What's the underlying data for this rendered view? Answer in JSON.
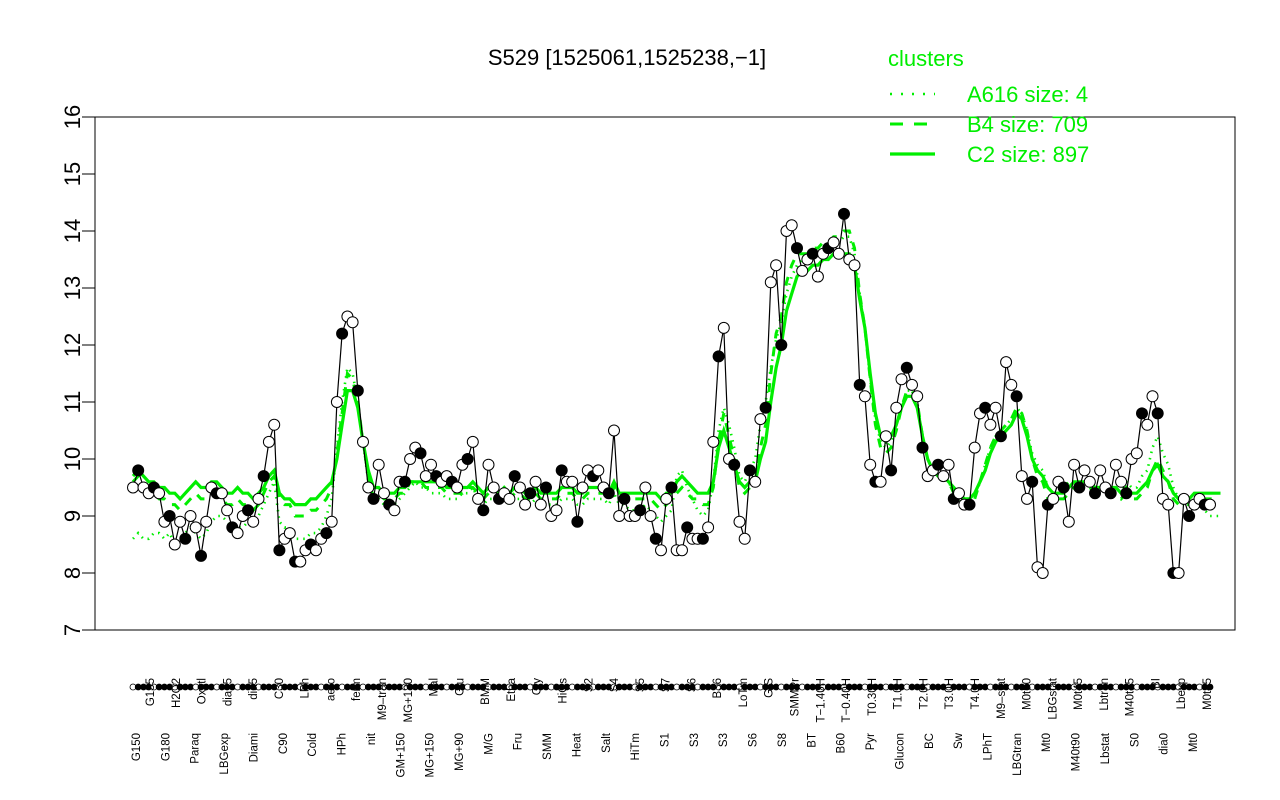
{
  "chart_data": {
    "type": "line",
    "title": "S529 [1525061,1525238,−1]",
    "ylim": [
      7,
      16
    ],
    "yticks": [
      7,
      8,
      9,
      10,
      11,
      12,
      13,
      14,
      15,
      16
    ],
    "grid": false,
    "legend": {
      "title": "clusters",
      "placement": "top-right",
      "color": "#00ee00",
      "entries": [
        {
          "label": "A616 size: 4",
          "style": "dotted"
        },
        {
          "label": "B4 size: 709",
          "style": "dashed"
        },
        {
          "label": "C2 size: 897",
          "style": "solid"
        }
      ]
    },
    "x_tick_labels_upper": [
      "G135",
      "H2O2",
      "Oxctl",
      "dia15",
      "dia5",
      "C30",
      "LPh",
      "aero",
      "ferm",
      "M9–tran",
      "MG+120",
      "Mal",
      "Glu",
      "BMM",
      "Etha",
      "Gly",
      "HiOs",
      "S2",
      "S4",
      "S5",
      "S7",
      "S6",
      "B36",
      "LoTm",
      "G/S",
      "SMMPr",
      "T−1.40H",
      "T−0.40H",
      "T0.30H",
      "T1.0H",
      "T2.0H",
      "T3.0H",
      "T4.0H",
      "M9–stat",
      "M0t90",
      "LBGstat",
      "M0t45",
      "Lbtran",
      "M40t45",
      "BI",
      "Lbexp",
      "M0t45"
    ],
    "x_tick_labels_lower": [
      "G150",
      "G180",
      "Paraq",
      "LBGexp",
      "Diami",
      "C90",
      "Cold",
      "HPh",
      "nit",
      "GM+150",
      "MG+150",
      "MG+90",
      "M/G",
      "Fru",
      "SMM",
      "Heat",
      "Salt",
      "HiTm",
      "S1",
      "S3",
      "S3",
      "S6",
      "S8",
      "BT",
      "B60",
      "Pyr",
      "Glucon",
      "BC",
      "Sw",
      "LPhT",
      "LBGtran",
      "Mt0",
      "M40t90",
      "Lbstat",
      "S0",
      "dia0",
      "Mt0"
    ],
    "series": [
      {
        "style": "black-line-points",
        "values": [
          9.5,
          9.8,
          9.5,
          9.4,
          9.5,
          9.4,
          8.9,
          9.0,
          8.5,
          8.9,
          8.6,
          9.0,
          8.8,
          8.3,
          8.9,
          9.5,
          9.4,
          9.4,
          9.1,
          8.8,
          8.7,
          9.0,
          9.1,
          8.9,
          9.3,
          9.7,
          10.3,
          10.6,
          8.4,
          8.6,
          8.7,
          8.2,
          8.2,
          8.4,
          8.5,
          8.4,
          8.6,
          8.7,
          8.9,
          11.0,
          12.2,
          12.5,
          12.4,
          11.2,
          10.3,
          9.5,
          9.3,
          9.9,
          9.4,
          9.2,
          9.1,
          9.6,
          9.6,
          10.0,
          10.2,
          10.1,
          9.7,
          9.9,
          9.7,
          9.6,
          9.7,
          9.6,
          9.5,
          9.9,
          10.0,
          10.3,
          9.3,
          9.1,
          9.9,
          9.5,
          9.3,
          9.4,
          9.3,
          9.7,
          9.5,
          9.2,
          9.4,
          9.6,
          9.2,
          9.5,
          9.0,
          9.1,
          9.8,
          9.6,
          9.6,
          8.9,
          9.5,
          9.8,
          9.7,
          9.8,
          9.5,
          9.4,
          10.5,
          9.0,
          9.3,
          9.0,
          9.0,
          9.1,
          9.5,
          9.0,
          8.6,
          8.4,
          9.3,
          9.5,
          8.4,
          8.4,
          8.8,
          8.6,
          8.6,
          8.6,
          8.8,
          10.3,
          11.8,
          12.3,
          10.0,
          9.9,
          8.9,
          8.6,
          9.8,
          9.6,
          10.7,
          10.9,
          13.1,
          13.4,
          12.0,
          14.0,
          14.1,
          13.7,
          13.3,
          13.5,
          13.6,
          13.2,
          13.6,
          13.7,
          13.8,
          13.6,
          14.3,
          13.5,
          13.4,
          11.3,
          11.1,
          9.9,
          9.6,
          9.6,
          10.4,
          9.8,
          10.9,
          11.4,
          11.6,
          11.3,
          11.1,
          10.2,
          9.7,
          9.8,
          9.9,
          9.7,
          9.9,
          9.3,
          9.4,
          9.2,
          9.2,
          10.2,
          10.8,
          10.9,
          10.6,
          10.9,
          10.4,
          11.7,
          11.3,
          11.1,
          9.7,
          9.3,
          9.6,
          8.1,
          8.0,
          9.2,
          9.3,
          9.6,
          9.5,
          8.9,
          9.9,
          9.5,
          9.8,
          9.6,
          9.4,
          9.8,
          9.5,
          9.4,
          9.9,
          9.6,
          9.4,
          10.0,
          10.1,
          10.8,
          10.6,
          11.1,
          10.8,
          9.3,
          9.2,
          8.0,
          8.0,
          9.3,
          9.0,
          9.2,
          9.3,
          9.2,
          9.2
        ]
      },
      {
        "name": "C2 size: 897",
        "style": "solid",
        "values": [
          9.7,
          9.8,
          9.7,
          9.6,
          9.6,
          9.5,
          9.5,
          9.4,
          9.4,
          9.3,
          9.4,
          9.5,
          9.6,
          9.5,
          9.5,
          9.6,
          9.6,
          9.5,
          9.4,
          9.4,
          9.5,
          9.4,
          9.4,
          9.3,
          9.4,
          9.5,
          9.7,
          9.8,
          9.4,
          9.3,
          9.3,
          9.2,
          9.2,
          9.2,
          9.3,
          9.3,
          9.4,
          9.5,
          9.6,
          10.0,
          10.6,
          11.2,
          11.2,
          10.9,
          10.3,
          9.8,
          9.5,
          9.5,
          9.4,
          9.4,
          9.4,
          9.5,
          9.5,
          9.6,
          9.6,
          9.6,
          9.6,
          9.6,
          9.6,
          9.6,
          9.5,
          9.5,
          9.5,
          9.5,
          9.5,
          9.6,
          9.5,
          9.4,
          9.5,
          9.5,
          9.4,
          9.5,
          9.4,
          9.5,
          9.5,
          9.4,
          9.4,
          9.5,
          9.4,
          9.4,
          9.4,
          9.4,
          9.5,
          9.5,
          9.5,
          9.4,
          9.4,
          9.5,
          9.5,
          9.5,
          9.5,
          9.4,
          9.6,
          9.4,
          9.4,
          9.4,
          9.4,
          9.4,
          9.4,
          9.4,
          9.4,
          9.3,
          9.4,
          9.4,
          9.6,
          9.7,
          9.6,
          9.5,
          9.4,
          9.4,
          9.4,
          9.6,
          10.2,
          10.5,
          10.2,
          9.9,
          9.6,
          9.5,
          9.6,
          9.6,
          10.0,
          10.3,
          11.0,
          11.6,
          12.0,
          12.6,
          12.9,
          13.2,
          13.3,
          13.3,
          13.4,
          13.4,
          13.5,
          13.5,
          13.6,
          13.6,
          13.6,
          13.6,
          13.4,
          12.8,
          12.3,
          11.5,
          10.8,
          10.4,
          10.3,
          10.4,
          10.6,
          10.9,
          11.1,
          11.1,
          10.9,
          10.4,
          10.0,
          9.8,
          9.7,
          9.7,
          9.6,
          9.5,
          9.4,
          9.3,
          9.3,
          9.4,
          9.6,
          9.8,
          10.1,
          10.3,
          10.4,
          10.5,
          10.6,
          10.8,
          10.7,
          10.4,
          10.0,
          9.8,
          9.7,
          9.5,
          9.4,
          9.4,
          9.4,
          9.5,
          9.6,
          9.6,
          9.6,
          9.6,
          9.5,
          9.5,
          9.5,
          9.5,
          9.5,
          9.4,
          9.5,
          9.4,
          9.4,
          9.5,
          9.6,
          9.8,
          9.9,
          9.7,
          9.6,
          9.4,
          9.3,
          9.3,
          9.3,
          9.4,
          9.4,
          9.4,
          9.4,
          9.4,
          9.4
        ]
      },
      {
        "name": "B4 size: 709",
        "style": "dashed",
        "values": [
          9.6,
          9.7,
          9.6,
          9.5,
          9.4,
          9.3,
          9.3,
          9.2,
          9.2,
          9.1,
          9.2,
          9.3,
          9.4,
          9.3,
          9.3,
          9.4,
          9.4,
          9.3,
          9.2,
          9.2,
          9.3,
          9.2,
          9.2,
          9.1,
          9.2,
          9.4,
          9.6,
          9.7,
          9.3,
          9.2,
          9.2,
          9.0,
          9.0,
          9.0,
          9.1,
          9.1,
          9.2,
          9.3,
          9.5,
          10.1,
          10.8,
          11.5,
          11.4,
          11.0,
          10.3,
          9.7,
          9.3,
          9.4,
          9.3,
          9.3,
          9.3,
          9.4,
          9.4,
          9.6,
          9.6,
          9.6,
          9.5,
          9.5,
          9.5,
          9.5,
          9.4,
          9.4,
          9.4,
          9.4,
          9.5,
          9.5,
          9.4,
          9.3,
          9.4,
          9.4,
          9.3,
          9.4,
          9.3,
          9.4,
          9.4,
          9.3,
          9.3,
          9.4,
          9.3,
          9.3,
          9.3,
          9.3,
          9.4,
          9.4,
          9.4,
          9.3,
          9.3,
          9.4,
          9.4,
          9.4,
          9.4,
          9.3,
          9.5,
          9.3,
          9.3,
          9.3,
          9.3,
          9.3,
          9.3,
          9.3,
          9.2,
          9.1,
          9.2,
          9.3,
          9.4,
          9.5,
          9.4,
          9.3,
          9.3,
          9.2,
          9.2,
          9.5,
          10.3,
          10.8,
          10.4,
          10.0,
          9.5,
          9.4,
          9.5,
          9.6,
          10.2,
          10.6,
          11.5,
          12.2,
          12.5,
          13.1,
          13.4,
          13.6,
          13.6,
          13.6,
          13.7,
          13.7,
          13.8,
          13.8,
          13.9,
          13.9,
          14.0,
          14.0,
          13.7,
          12.9,
          12.3,
          11.4,
          10.6,
          10.2,
          10.1,
          10.2,
          10.5,
          10.9,
          11.2,
          11.2,
          11.0,
          10.4,
          10.0,
          9.8,
          9.7,
          9.7,
          9.6,
          9.4,
          9.3,
          9.2,
          9.2,
          9.3,
          9.6,
          9.9,
          10.2,
          10.4,
          10.5,
          10.6,
          10.7,
          10.9,
          10.8,
          10.5,
          10.0,
          9.7,
          9.6,
          9.3,
          9.2,
          9.3,
          9.3,
          9.4,
          9.5,
          9.5,
          9.5,
          9.5,
          9.4,
          9.4,
          9.4,
          9.4,
          9.4,
          9.3,
          9.4,
          9.3,
          9.3,
          9.4,
          9.5,
          9.8,
          10.0,
          9.8,
          9.6,
          9.3,
          9.2,
          9.2,
          9.2,
          9.3,
          9.3,
          9.3,
          9.3,
          9.3,
          9.3
        ]
      },
      {
        "name": "A616 size: 4",
        "style": "dotted",
        "values": [
          8.6,
          8.7,
          8.6,
          8.6,
          8.7,
          8.7,
          8.6,
          8.7,
          8.5,
          8.6,
          8.7,
          8.8,
          8.7,
          8.6,
          8.7,
          8.9,
          9.0,
          9.0,
          8.9,
          8.8,
          8.8,
          8.8,
          8.9,
          8.8,
          9.0,
          9.2,
          9.4,
          9.6,
          8.9,
          8.8,
          8.8,
          8.6,
          8.6,
          8.6,
          8.7,
          8.7,
          8.8,
          9.0,
          9.3,
          10.2,
          11.0,
          11.6,
          11.5,
          11.0,
          10.3,
          9.6,
          9.3,
          9.3,
          9.2,
          9.2,
          9.2,
          9.3,
          9.4,
          9.5,
          9.6,
          9.5,
          9.5,
          9.4,
          9.4,
          9.4,
          9.3,
          9.3,
          9.3,
          9.4,
          9.4,
          9.5,
          9.3,
          9.2,
          9.3,
          9.3,
          9.3,
          9.3,
          9.2,
          9.3,
          9.3,
          9.2,
          9.2,
          9.3,
          9.2,
          9.2,
          9.2,
          9.2,
          9.3,
          9.3,
          9.3,
          9.2,
          9.2,
          9.3,
          9.3,
          9.3,
          9.3,
          9.2,
          9.4,
          9.2,
          9.2,
          9.1,
          9.1,
          9.1,
          9.2,
          9.1,
          9.0,
          8.9,
          9.0,
          9.1,
          9.7,
          9.8,
          9.5,
          9.3,
          9.1,
          9.0,
          9.1,
          9.6,
          10.5,
          10.9,
          10.6,
          10.2,
          9.7,
          9.6,
          9.8,
          10.0,
          10.6,
          11.0,
          11.6,
          12.1,
          12.4,
          12.9,
          13.2,
          13.4,
          13.5,
          13.5,
          13.6,
          13.6,
          13.7,
          13.7,
          13.8,
          13.8,
          13.9,
          13.9,
          13.6,
          12.9,
          12.3,
          11.4,
          10.7,
          10.3,
          10.2,
          10.3,
          10.6,
          10.9,
          11.2,
          11.2,
          11.0,
          10.4,
          10.0,
          9.8,
          9.7,
          9.7,
          9.6,
          9.4,
          9.3,
          9.2,
          9.2,
          9.3,
          9.6,
          9.9,
          10.2,
          10.4,
          10.5,
          10.6,
          10.7,
          10.9,
          10.8,
          10.5,
          10.1,
          9.9,
          9.8,
          9.5,
          9.4,
          9.4,
          9.5,
          9.6,
          9.6,
          9.6,
          9.6,
          9.6,
          9.5,
          9.5,
          9.5,
          9.5,
          9.5,
          9.4,
          9.6,
          9.5,
          9.5,
          9.7,
          9.8,
          10.2,
          10.4,
          10.1,
          9.9,
          9.5,
          9.3,
          9.2,
          9.2,
          9.2,
          9.2,
          9.1,
          9.0,
          9.0,
          9.0
        ]
      }
    ]
  }
}
